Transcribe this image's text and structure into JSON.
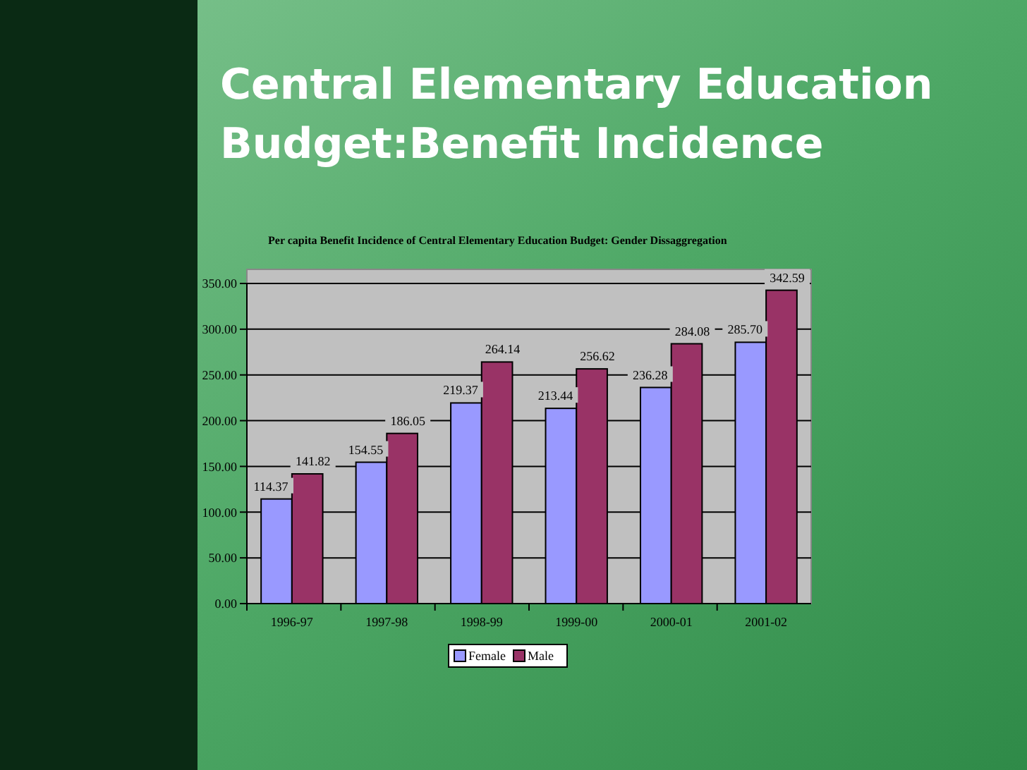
{
  "chart_data": {
    "type": "bar",
    "title": "Central Elementary Education Budget:Benefit Incidence",
    "subtitle": "Per capita Benefit Incidence of Central Elementary Education Budget: Gender Dissaggregation",
    "categories": [
      "1996-97",
      "1997-98",
      "1998-99",
      "1999-00",
      "2000-01",
      "2001-02"
    ],
    "series": [
      {
        "name": "Female",
        "color": "#9999ff",
        "values": [
          114.37,
          154.55,
          219.37,
          213.44,
          236.28,
          285.7
        ],
        "value_labels": [
          "114.37",
          "154.55",
          "219.37",
          "213.44",
          "236.28",
          "285.70"
        ]
      },
      {
        "name": "Male",
        "color": "#993366",
        "values": [
          141.82,
          186.05,
          264.14,
          256.62,
          284.08,
          342.59
        ],
        "value_labels": [
          "141.82",
          "186.05",
          "264.14",
          "256.62",
          "284.08",
          "342.59"
        ]
      }
    ],
    "ylim": [
      0,
      350
    ],
    "yticks": [
      {
        "value": 0,
        "label": "0.00"
      },
      {
        "value": 50,
        "label": "50.00"
      },
      {
        "value": 100,
        "label": "100.00"
      },
      {
        "value": 150,
        "label": "150.00"
      },
      {
        "value": 200,
        "label": "200.00"
      },
      {
        "value": 250,
        "label": "250.00"
      },
      {
        "value": 300,
        "label": "300.00"
      },
      {
        "value": 350,
        "label": "350.00"
      }
    ],
    "grid": "y",
    "legend": "bottom"
  }
}
